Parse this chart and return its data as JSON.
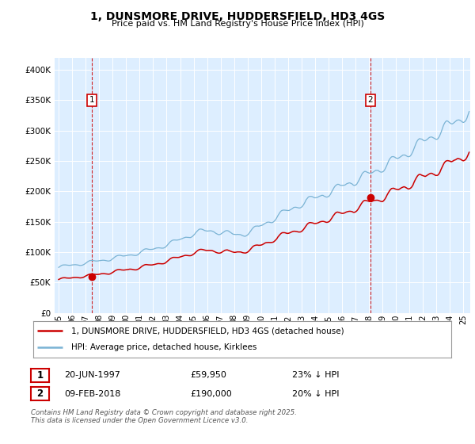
{
  "title": "1, DUNSMORE DRIVE, HUDDERSFIELD, HD3 4GS",
  "subtitle": "Price paid vs. HM Land Registry's House Price Index (HPI)",
  "legend_line1": "1, DUNSMORE DRIVE, HUDDERSFIELD, HD3 4GS (detached house)",
  "legend_line2": "HPI: Average price, detached house, Kirklees",
  "sale1_date": "20-JUN-1997",
  "sale1_price": "£59,950",
  "sale1_hpi": "23% ↓ HPI",
  "sale2_date": "09-FEB-2018",
  "sale2_price": "£190,000",
  "sale2_hpi": "20% ↓ HPI",
  "sale1_x": 1997.47,
  "sale1_y": 59950,
  "sale2_x": 2018.1,
  "sale2_y": 190000,
  "hpi_color": "#7ab3d4",
  "price_color": "#cc0000",
  "plot_bg": "#ddeeff",
  "fig_bg": "#ffffff",
  "ylim": [
    0,
    420000
  ],
  "yticks": [
    0,
    50000,
    100000,
    150000,
    200000,
    250000,
    300000,
    350000,
    400000
  ],
  "xlim_start": 1994.7,
  "xlim_end": 2025.5,
  "footer_line1": "Contains HM Land Registry data © Crown copyright and database right 2025.",
  "footer_line2": "This data is licensed under the Open Government Licence v3.0."
}
